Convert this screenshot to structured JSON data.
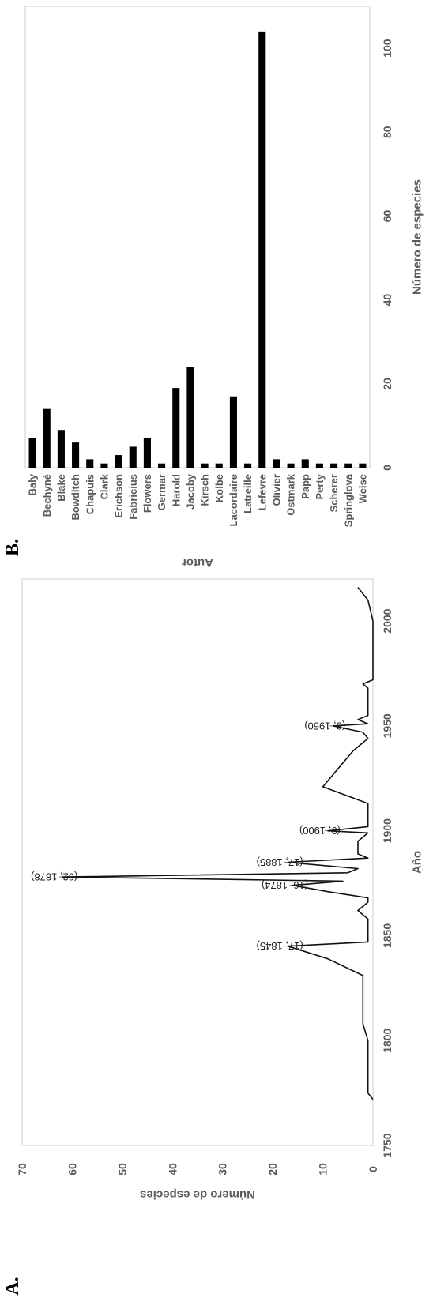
{
  "chart_data": [
    {
      "type": "line",
      "panel_label": "A.",
      "xlabel": "Año",
      "ylabel": "Número de especies",
      "xlim": [
        1750,
        2020
      ],
      "ylim": [
        0,
        70
      ],
      "xticks": [
        "1750",
        "1800",
        "1850",
        "1900",
        "1950",
        "2000"
      ],
      "yticks": [
        "0",
        "10",
        "20",
        "30",
        "40",
        "50",
        "60",
        "70"
      ],
      "x": [
        1772,
        1775,
        1785,
        1800,
        1808,
        1820,
        1831,
        1839,
        1845,
        1847,
        1858,
        1862,
        1866,
        1868,
        1871,
        1874,
        1876,
        1878,
        1880,
        1882,
        1885,
        1887,
        1889,
        1895,
        1899,
        1900,
        1902,
        1908,
        1913,
        1921,
        1938,
        1944,
        1947,
        1950,
        1951,
        1953,
        1955,
        1958,
        1968,
        1970,
        1972,
        1982,
        2000,
        2010,
        2016
      ],
      "y": [
        0,
        1,
        1,
        1,
        2,
        2,
        2,
        9,
        17,
        1,
        1,
        3,
        1,
        1,
        9,
        16,
        6,
        62,
        5,
        3,
        17,
        1,
        3,
        3,
        1,
        9,
        1,
        1,
        1,
        10,
        4,
        1,
        2,
        8,
        1,
        3,
        1,
        1,
        1,
        2,
        0,
        0,
        0,
        1,
        3
      ],
      "annotations": [
        {
          "label": "(17, 1845)",
          "x": 1845,
          "y": 17
        },
        {
          "label": "(16, 1874)",
          "x": 1874,
          "y": 16
        },
        {
          "label": "(62, 1878)",
          "x": 1878,
          "y": 62
        },
        {
          "label": "(17, 1885)",
          "x": 1885,
          "y": 17
        },
        {
          "label": "(9, 1900)",
          "x": 1900,
          "y": 9
        },
        {
          "label": "(8, 1950)",
          "x": 1950,
          "y": 8
        }
      ]
    },
    {
      "type": "bar",
      "panel_label": "B.",
      "xlabel": "Autor",
      "ylabel": "Número de especies",
      "ylim": [
        0,
        110
      ],
      "yticks": [
        "0",
        "20",
        "40",
        "60",
        "80",
        "100"
      ],
      "categories": [
        "Baly",
        "Bechyné",
        "Blake",
        "Bowditch",
        "Chapuis",
        "Clark",
        "Erichson",
        "Fabricius",
        "Flowers",
        "Germar",
        "Harold",
        "Jacoby",
        "Kirsch",
        "Kolbe",
        "Lacordaire",
        "Latreille",
        "Lefevre",
        "Olivier",
        "Ostmark",
        "Papp",
        "Perty",
        "Scherer",
        "Springlova",
        "Weise"
      ],
      "values": [
        7,
        14,
        9,
        6,
        2,
        1,
        3,
        5,
        7,
        1,
        19,
        24,
        1,
        1,
        17,
        1,
        104,
        2,
        1,
        2,
        1,
        1,
        1,
        1
      ]
    }
  ]
}
